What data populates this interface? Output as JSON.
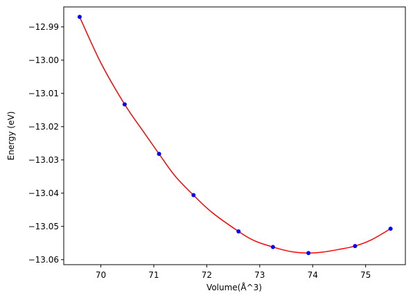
{
  "chart_data": {
    "type": "scatter",
    "title": "",
    "xlabel": "Volume(Å^3)",
    "ylabel": "Energy (eV)",
    "xlim": [
      69.3,
      75.75
    ],
    "ylim": [
      -13.0615,
      -12.984
    ],
    "xticks": [
      70,
      71,
      72,
      73,
      74,
      75
    ],
    "xtick_labels": [
      "70",
      "71",
      "72",
      "73",
      "74",
      "75"
    ],
    "yticks": [
      -12.99,
      -13.0,
      -13.01,
      -13.02,
      -13.03,
      -13.04,
      -13.05,
      -13.06
    ],
    "ytick_labels": [
      "−12.99",
      "−13.00",
      "−13.01",
      "−13.02",
      "−13.03",
      "−13.04",
      "−13.05",
      "−13.06"
    ],
    "grid": false,
    "series": [
      {
        "kind": "points",
        "color": "#0000ff",
        "x": [
          69.6,
          70.45,
          71.1,
          71.75,
          72.6,
          73.25,
          73.92,
          74.8,
          75.47
        ],
        "y": [
          -12.987,
          -13.0133,
          -13.0282,
          -13.0406,
          -13.0515,
          -13.0562,
          -13.058,
          -13.0559,
          -13.0507
        ]
      },
      {
        "kind": "fit-curve",
        "color": "#ff0000",
        "x": [
          69.6,
          70.0,
          70.45,
          70.8,
          71.1,
          71.4,
          71.75,
          72.1,
          72.6,
          72.9,
          73.25,
          73.6,
          73.92,
          74.2,
          74.5,
          74.8,
          75.1,
          75.47
        ],
        "y": [
          -12.987,
          -13.0008,
          -13.0133,
          -13.0214,
          -13.0282,
          -13.0348,
          -13.0406,
          -13.0458,
          -13.0515,
          -13.0543,
          -13.0562,
          -13.0576,
          -13.058,
          -13.0577,
          -13.0569,
          -13.0559,
          -13.0541,
          -13.0507
        ]
      }
    ]
  }
}
